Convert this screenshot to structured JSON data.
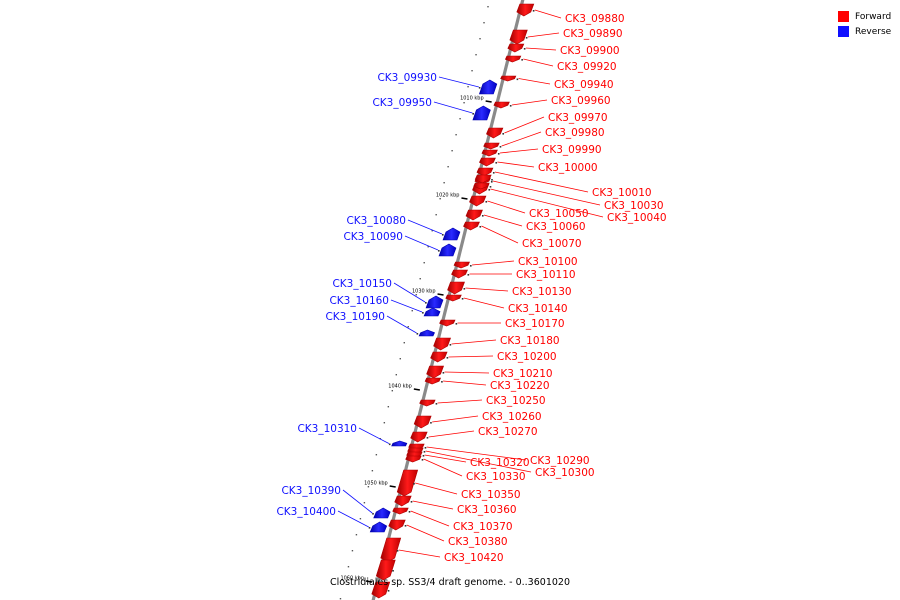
{
  "legend": {
    "forward_label": "Forward",
    "reverse_label": "Reverse",
    "forward_color": "#ff0000",
    "reverse_color": "#1010ff"
  },
  "caption": "Clostridiales sp. SS3/4 draft genome. - 0..3601020",
  "scale_ticks": [
    {
      "position_kbp": 1010,
      "label": "1010 kbp"
    },
    {
      "position_kbp": 1020,
      "label": "1020 kbp"
    },
    {
      "position_kbp": 1030,
      "label": "1030 kbp"
    },
    {
      "position_kbp": 1040,
      "label": "1040 kbp"
    },
    {
      "position_kbp": 1050,
      "label": "1050 kbp"
    },
    {
      "position_kbp": 1060,
      "label": "1060 kbp"
    }
  ],
  "genes": [
    {
      "id": "CK3_09880",
      "strand": "forward"
    },
    {
      "id": "CK3_09890",
      "strand": "forward"
    },
    {
      "id": "CK3_09900",
      "strand": "forward"
    },
    {
      "id": "CK3_09920",
      "strand": "forward"
    },
    {
      "id": "CK3_09930",
      "strand": "reverse"
    },
    {
      "id": "CK3_09940",
      "strand": "forward"
    },
    {
      "id": "CK3_09950",
      "strand": "reverse"
    },
    {
      "id": "CK3_09960",
      "strand": "forward"
    },
    {
      "id": "CK3_09970",
      "strand": "forward"
    },
    {
      "id": "CK3_09980",
      "strand": "forward"
    },
    {
      "id": "CK3_09990",
      "strand": "forward"
    },
    {
      "id": "CK3_10000",
      "strand": "forward"
    },
    {
      "id": "CK3_10010",
      "strand": "forward"
    },
    {
      "id": "CK3_10030",
      "strand": "forward"
    },
    {
      "id": "CK3_10040",
      "strand": "forward"
    },
    {
      "id": "CK3_10050",
      "strand": "forward"
    },
    {
      "id": "CK3_10060",
      "strand": "forward"
    },
    {
      "id": "CK3_10070",
      "strand": "forward"
    },
    {
      "id": "CK3_10080",
      "strand": "reverse"
    },
    {
      "id": "CK3_10090",
      "strand": "reverse"
    },
    {
      "id": "CK3_10100",
      "strand": "forward"
    },
    {
      "id": "CK3_10110",
      "strand": "forward"
    },
    {
      "id": "CK3_10130",
      "strand": "forward"
    },
    {
      "id": "CK3_10140",
      "strand": "forward"
    },
    {
      "id": "CK3_10150",
      "strand": "reverse"
    },
    {
      "id": "CK3_10160",
      "strand": "reverse"
    },
    {
      "id": "CK3_10170",
      "strand": "forward"
    },
    {
      "id": "CK3_10180",
      "strand": "forward"
    },
    {
      "id": "CK3_10190",
      "strand": "reverse"
    },
    {
      "id": "CK3_10200",
      "strand": "forward"
    },
    {
      "id": "CK3_10210",
      "strand": "forward"
    },
    {
      "id": "CK3_10220",
      "strand": "forward"
    },
    {
      "id": "CK3_10250",
      "strand": "forward"
    },
    {
      "id": "CK3_10260",
      "strand": "forward"
    },
    {
      "id": "CK3_10270",
      "strand": "forward"
    },
    {
      "id": "CK3_10290",
      "strand": "forward"
    },
    {
      "id": "CK3_10300",
      "strand": "forward"
    },
    {
      "id": "CK3_10310",
      "strand": "reverse"
    },
    {
      "id": "CK3_10320",
      "strand": "forward"
    },
    {
      "id": "CK3_10330",
      "strand": "forward"
    },
    {
      "id": "CK3_10350",
      "strand": "forward"
    },
    {
      "id": "CK3_10360",
      "strand": "forward"
    },
    {
      "id": "CK3_10370",
      "strand": "forward"
    },
    {
      "id": "CK3_10380",
      "strand": "forward"
    },
    {
      "id": "CK3_10390",
      "strand": "reverse"
    },
    {
      "id": "CK3_10400",
      "strand": "reverse"
    },
    {
      "id": "CK3_10420",
      "strand": "forward"
    }
  ]
}
